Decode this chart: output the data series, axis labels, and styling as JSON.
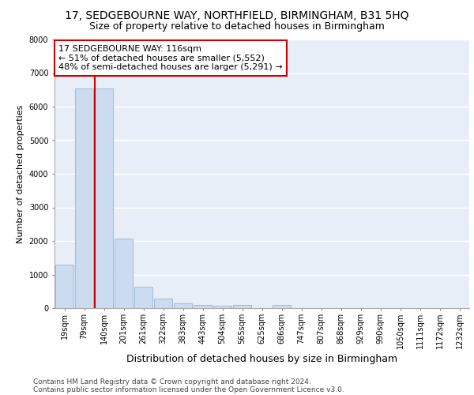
{
  "title1": "17, SEDGEBOURNE WAY, NORTHFIELD, BIRMINGHAM, B31 5HQ",
  "title2": "Size of property relative to detached houses in Birmingham",
  "xlabel": "Distribution of detached houses by size in Birmingham",
  "ylabel": "Number of detached properties",
  "footnote1": "Contains HM Land Registry data © Crown copyright and database right 2024.",
  "footnote2": "Contains public sector information licensed under the Open Government Licence v3.0.",
  "categories": [
    "19sqm",
    "79sqm",
    "140sqm",
    "201sqm",
    "261sqm",
    "322sqm",
    "383sqm",
    "443sqm",
    "504sqm",
    "565sqm",
    "625sqm",
    "686sqm",
    "747sqm",
    "807sqm",
    "868sqm",
    "929sqm",
    "990sqm",
    "1050sqm",
    "1111sqm",
    "1172sqm",
    "1232sqm"
  ],
  "values": [
    1300,
    6550,
    6550,
    2070,
    630,
    290,
    145,
    90,
    65,
    90,
    0,
    90,
    0,
    0,
    0,
    0,
    0,
    0,
    0,
    0,
    0
  ],
  "bar_color": "#ccdcf0",
  "bar_edge_color": "#9bbbd8",
  "annotation_text": "17 SEDGEBOURNE WAY: 116sqm\n← 51% of detached houses are smaller (5,552)\n48% of semi-detached houses are larger (5,291) →",
  "annotation_box_color": "white",
  "annotation_border_color": "#cc0000",
  "vline_color": "#cc0000",
  "vline_x": 2.0,
  "ylim": [
    0,
    8000
  ],
  "yticks": [
    0,
    1000,
    2000,
    3000,
    4000,
    5000,
    6000,
    7000,
    8000
  ],
  "background_color": "#e8eef8",
  "grid_color": "white",
  "title1_fontsize": 10,
  "title2_fontsize": 9,
  "xlabel_fontsize": 9,
  "ylabel_fontsize": 8,
  "tick_fontsize": 7,
  "annotation_fontsize": 8,
  "footnote_fontsize": 6.5
}
